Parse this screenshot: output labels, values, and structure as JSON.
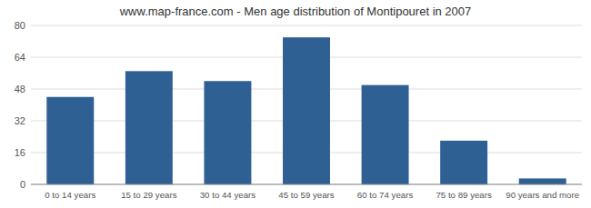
{
  "chart_data": {
    "type": "bar",
    "title": "www.map-france.com - Men age distribution of Montipouret in 2007",
    "categories": [
      "0 to 14 years",
      "15 to 29 years",
      "30 to 44 years",
      "45 to 59 years",
      "60 to 74 years",
      "75 to 89 years",
      "90 years and more"
    ],
    "values": [
      44,
      57,
      52,
      74,
      50,
      22,
      3
    ],
    "color": "#2e6094",
    "ylim": [
      0,
      80
    ],
    "yticks": [
      0,
      16,
      32,
      48,
      64,
      80
    ],
    "grid": true
  }
}
